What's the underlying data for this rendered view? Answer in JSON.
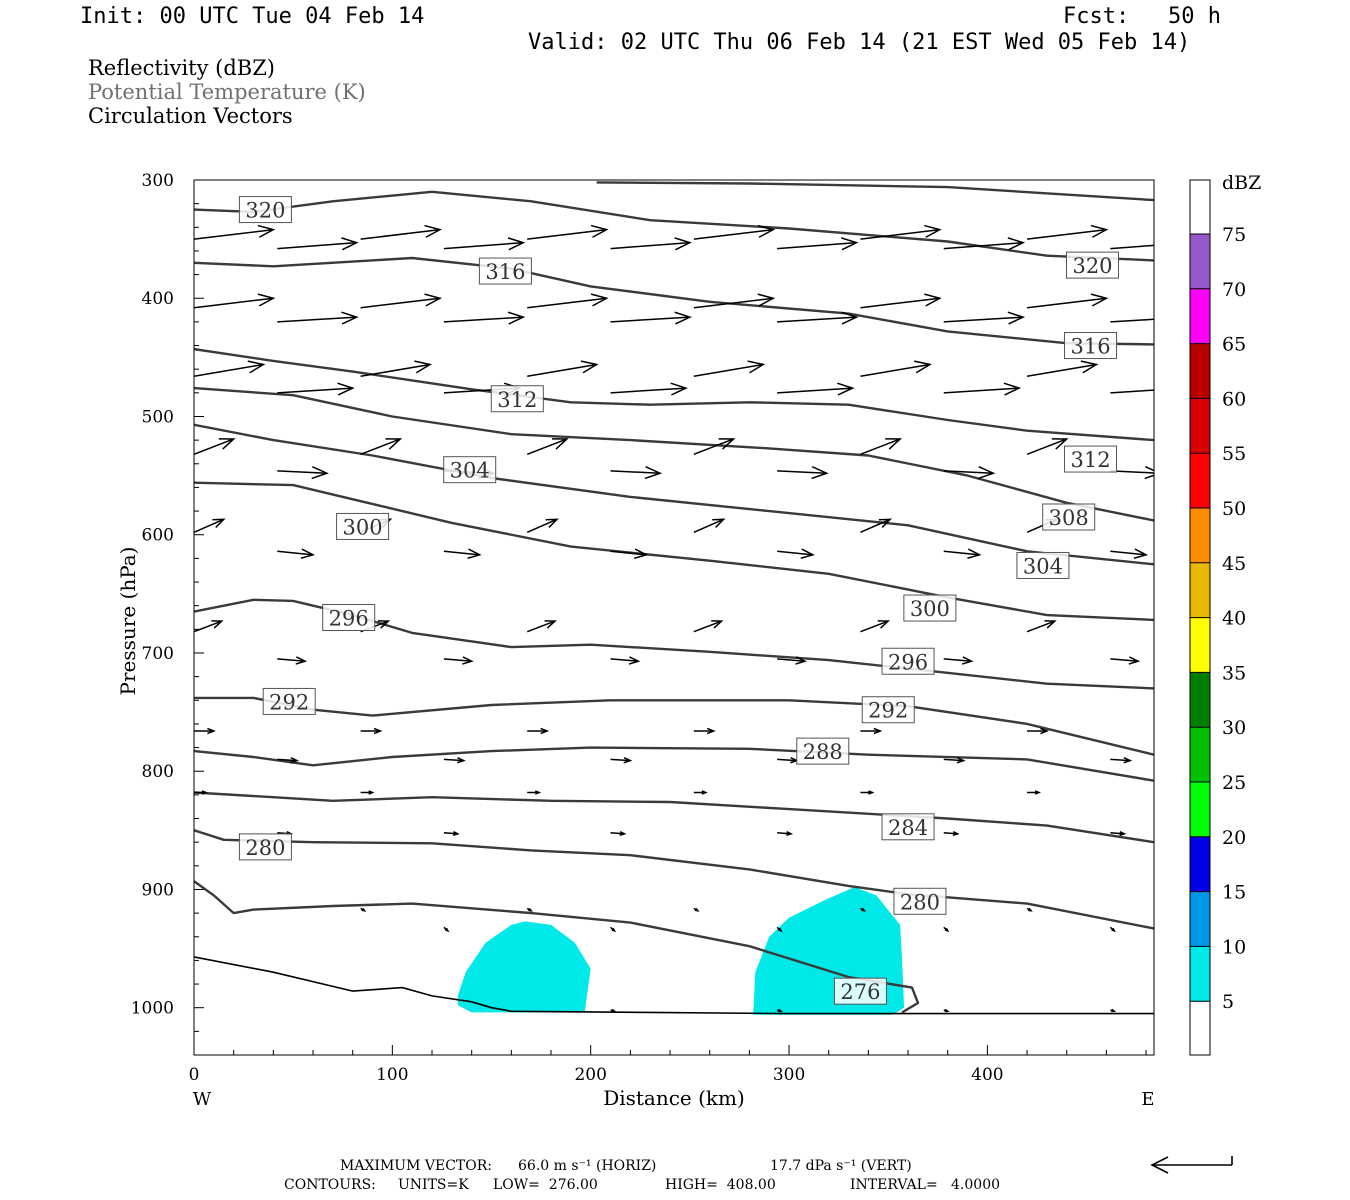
{
  "header": {
    "init": "Init: 00 UTC Tue 04 Feb 14",
    "fcst_label": "Fcst:",
    "fcst_value": "50 h",
    "valid": "Valid: 02 UTC Thu 06 Feb 14 (21 EST Wed 05 Feb 14)",
    "fields": [
      "Reflectivity (dBZ)",
      "Potential Temperature (K)",
      "Circulation Vectors"
    ]
  },
  "footer": {
    "max_label": "MAXIMUM VECTOR:",
    "max_horiz": "66.0 m s⁻¹ (HORIZ)",
    "max_vert": "17.7 dPa s⁻¹ (VERT)",
    "contours_label": "CONTOURS:",
    "units": "UNITS=K",
    "low": "LOW=  276.00",
    "high": "HIGH=  408.00",
    "interval": "INTERVAL=   4.0000"
  },
  "colors": {
    "contour": "#3a3a3a",
    "echo": "#00e8e8"
  },
  "chart_data": {
    "type": "cross-section",
    "xlabel": "Distance (km)",
    "ylabel": "Pressure (hPa)",
    "xlim": [
      0,
      484
    ],
    "ylim": [
      1040,
      300
    ],
    "x_ticks": [
      0,
      100,
      200,
      300,
      400
    ],
    "y_ticks": [
      300,
      400,
      500,
      600,
      700,
      800,
      900,
      1000
    ],
    "x_end_labels": {
      "left": "W",
      "right": "E"
    },
    "colorbar": {
      "label": "dBZ",
      "ticks": [
        5,
        10,
        15,
        20,
        25,
        30,
        35,
        40,
        45,
        50,
        55,
        60,
        65,
        70,
        75
      ],
      "colors": [
        "#00e8e8",
        "#0098e8",
        "#0000e8",
        "#00ff00",
        "#00c000",
        "#008000",
        "#ffff00",
        "#e8b800",
        "#ff8c00",
        "#ff0000",
        "#d80000",
        "#b80000",
        "#ff00ff",
        "#9858c8"
      ]
    },
    "theta_contours": [
      {
        "value": 320,
        "points": [
          [
            0,
            325
          ],
          [
            30,
            327
          ],
          [
            70,
            318
          ],
          [
            120,
            310
          ],
          [
            170,
            318
          ],
          [
            230,
            334
          ],
          [
            300,
            341
          ],
          [
            380,
            352
          ],
          [
            430,
            364
          ],
          [
            484,
            368
          ]
        ],
        "labels": [
          [
            36,
            325
          ],
          [
            453,
            372
          ]
        ]
      },
      {
        "value": 320,
        "points": [
          [
            203,
            302
          ],
          [
            280,
            303
          ],
          [
            380,
            306
          ],
          [
            484,
            317
          ]
        ],
        "labels": []
      },
      {
        "value": 316,
        "points": [
          [
            0,
            370
          ],
          [
            40,
            373
          ],
          [
            110,
            366
          ],
          [
            160,
            375
          ],
          [
            200,
            390
          ],
          [
            260,
            403
          ],
          [
            330,
            413
          ],
          [
            380,
            428
          ],
          [
            440,
            438
          ],
          [
            484,
            439
          ]
        ],
        "labels": [
          [
            157,
            377
          ],
          [
            452,
            440
          ]
        ]
      },
      {
        "value": 312,
        "points": [
          [
            0,
            443
          ],
          [
            40,
            453
          ],
          [
            80,
            462
          ],
          [
            140,
            477
          ],
          [
            190,
            488
          ],
          [
            230,
            490
          ],
          [
            280,
            488
          ],
          [
            330,
            490
          ],
          [
            380,
            503
          ],
          [
            420,
            512
          ],
          [
            484,
            520
          ]
        ],
        "labels": [
          [
            163,
            485
          ],
          [
            452,
            536
          ]
        ]
      },
      {
        "value": 308,
        "points": [
          [
            0,
            476
          ],
          [
            50,
            482
          ],
          [
            100,
            500
          ],
          [
            160,
            515
          ],
          [
            220,
            520
          ],
          [
            290,
            527
          ],
          [
            340,
            533
          ],
          [
            390,
            550
          ],
          [
            440,
            573
          ],
          [
            484,
            588
          ]
        ],
        "labels": [
          [
            441,
            585
          ]
        ]
      },
      {
        "value": 304,
        "points": [
          [
            0,
            507
          ],
          [
            40,
            520
          ],
          [
            90,
            533
          ],
          [
            150,
            552
          ],
          [
            220,
            568
          ],
          [
            290,
            580
          ],
          [
            360,
            592
          ],
          [
            420,
            614
          ],
          [
            484,
            625
          ]
        ],
        "labels": [
          [
            139,
            545
          ],
          [
            428,
            626
          ]
        ]
      },
      {
        "value": 300,
        "points": [
          [
            0,
            556
          ],
          [
            50,
            558
          ],
          [
            100,
            578
          ],
          [
            130,
            590
          ],
          [
            190,
            610
          ],
          [
            260,
            622
          ],
          [
            320,
            633
          ],
          [
            380,
            653
          ],
          [
            430,
            668
          ],
          [
            484,
            672
          ]
        ],
        "labels": [
          [
            85,
            593
          ],
          [
            371,
            662
          ]
        ]
      },
      {
        "value": 296,
        "points": [
          [
            0,
            665
          ],
          [
            30,
            655
          ],
          [
            50,
            656
          ],
          [
            80,
            668
          ],
          [
            110,
            683
          ],
          [
            160,
            695
          ],
          [
            200,
            693
          ],
          [
            260,
            699
          ],
          [
            320,
            706
          ],
          [
            370,
            715
          ],
          [
            430,
            726
          ],
          [
            484,
            730
          ]
        ],
        "labels": [
          [
            78,
            670
          ],
          [
            360,
            707
          ]
        ]
      },
      {
        "value": 292,
        "points": [
          [
            0,
            738
          ],
          [
            30,
            738
          ],
          [
            60,
            748
          ],
          [
            90,
            753
          ],
          [
            150,
            744
          ],
          [
            210,
            740
          ],
          [
            300,
            740
          ],
          [
            360,
            745
          ],
          [
            420,
            760
          ],
          [
            484,
            786
          ]
        ],
        "labels": [
          [
            48,
            741
          ],
          [
            350,
            748
          ]
        ]
      },
      {
        "value": 288,
        "points": [
          [
            0,
            783
          ],
          [
            30,
            788
          ],
          [
            60,
            795
          ],
          [
            100,
            788
          ],
          [
            150,
            783
          ],
          [
            200,
            780
          ],
          [
            280,
            781
          ],
          [
            340,
            786
          ],
          [
            420,
            790
          ],
          [
            484,
            808
          ]
        ],
        "labels": [
          [
            317,
            783
          ]
        ]
      },
      {
        "value": 284,
        "points": [
          [
            0,
            818
          ],
          [
            40,
            822
          ],
          [
            70,
            825
          ],
          [
            120,
            822
          ],
          [
            180,
            825
          ],
          [
            240,
            826
          ],
          [
            300,
            832
          ],
          [
            380,
            840
          ],
          [
            430,
            846
          ],
          [
            484,
            860
          ]
        ],
        "labels": [
          [
            360,
            847
          ]
        ]
      },
      {
        "value": 280,
        "points": [
          [
            0,
            850
          ],
          [
            15,
            858
          ],
          [
            60,
            860
          ],
          [
            120,
            861
          ],
          [
            170,
            867
          ],
          [
            220,
            871
          ],
          [
            280,
            883
          ],
          [
            330,
            897
          ],
          [
            360,
            904
          ],
          [
            420,
            912
          ],
          [
            484,
            933
          ]
        ],
        "labels": [
          [
            36,
            864
          ],
          [
            366,
            910
          ]
        ]
      },
      {
        "value": 276,
        "points": [
          [
            0,
            893
          ],
          [
            10,
            905
          ],
          [
            20,
            920
          ],
          [
            30,
            917
          ],
          [
            70,
            914
          ],
          [
            110,
            912
          ],
          [
            170,
            920
          ],
          [
            220,
            928
          ],
          [
            280,
            948
          ],
          [
            330,
            974
          ],
          [
            362,
            983
          ],
          [
            365,
            996
          ],
          [
            357,
            1004
          ]
        ],
        "labels": [
          [
            336,
            986
          ]
        ]
      }
    ],
    "terrain_points": [
      [
        0,
        957
      ],
      [
        40,
        970
      ],
      [
        80,
        986
      ],
      [
        105,
        983
      ],
      [
        120,
        990
      ],
      [
        140,
        995
      ],
      [
        150,
        1000
      ],
      [
        160,
        1003
      ],
      [
        300,
        1005
      ],
      [
        484,
        1005
      ]
    ],
    "reflectivity_areas": [
      {
        "dbz": 5,
        "points": [
          [
            133,
            990
          ],
          [
            137,
            970
          ],
          [
            147,
            945
          ],
          [
            160,
            930
          ],
          [
            167,
            927
          ],
          [
            180,
            930
          ],
          [
            192,
            945
          ],
          [
            200,
            967
          ],
          [
            197,
            1004
          ],
          [
            140,
            1004
          ],
          [
            133,
            998
          ]
        ]
      },
      {
        "dbz": 5,
        "points": [
          [
            282,
            1004
          ],
          [
            283,
            970
          ],
          [
            290,
            940
          ],
          [
            300,
            924
          ],
          [
            318,
            909
          ],
          [
            333,
            898
          ],
          [
            344,
            905
          ],
          [
            356,
            930
          ],
          [
            357,
            960
          ],
          [
            358,
            1000
          ],
          [
            352,
            1006
          ],
          [
            282,
            1006
          ]
        ]
      }
    ],
    "vectors": [
      {
        "p": 350,
        "xs": [
          0,
          84,
          168,
          252,
          336,
          420
        ],
        "dx": 40,
        "dp": -8
      },
      {
        "p": 358,
        "xs": [
          42,
          126,
          210,
          294,
          378,
          462
        ],
        "dx": 40,
        "dp": -5
      },
      {
        "p": 408,
        "xs": [
          0,
          84,
          168,
          252,
          336,
          420
        ],
        "dx": 40,
        "dp": -8
      },
      {
        "p": 420,
        "xs": [
          42,
          126,
          210,
          294,
          378,
          462
        ],
        "dx": 40,
        "dp": -4
      },
      {
        "p": 466,
        "xs": [
          0,
          84,
          168,
          252,
          336,
          420
        ],
        "dx": 35,
        "dp": -10
      },
      {
        "p": 480,
        "xs": [
          42,
          126,
          210,
          294,
          378,
          462
        ],
        "dx": 38,
        "dp": -4
      },
      {
        "p": 532,
        "xs": [
          0,
          84,
          168,
          252,
          336,
          420
        ],
        "dx": 20,
        "dp": -13
      },
      {
        "p": 546,
        "xs": [
          42,
          126,
          210,
          294,
          378,
          462
        ],
        "dx": 25,
        "dp": 2
      },
      {
        "p": 598,
        "xs": [
          0,
          84,
          168,
          252,
          336,
          420
        ],
        "dx": 15,
        "dp": -11
      },
      {
        "p": 614,
        "xs": [
          42,
          126,
          210,
          294,
          378,
          462
        ],
        "dx": 18,
        "dp": 3
      },
      {
        "p": 682,
        "xs": [
          0,
          84,
          168,
          252,
          336,
          420
        ],
        "dx": 14,
        "dp": -9
      },
      {
        "p": 705,
        "xs": [
          42,
          126,
          210,
          294,
          378,
          462
        ],
        "dx": 14,
        "dp": 2
      },
      {
        "p": 766,
        "xs": [
          0,
          84,
          168,
          252,
          336,
          420
        ],
        "dx": 10,
        "dp": 0
      },
      {
        "p": 790,
        "xs": [
          42,
          126,
          210,
          294,
          378,
          462
        ],
        "dx": 10,
        "dp": 1
      },
      {
        "p": 818,
        "xs": [
          0,
          84,
          168,
          252,
          336,
          420
        ],
        "dx": 6,
        "dp": 0
      },
      {
        "p": 852,
        "xs": [
          42,
          126,
          210,
          294,
          378,
          462
        ],
        "dx": 7,
        "dp": 1
      },
      {
        "p": 916,
        "xs": [
          84,
          168,
          252,
          336,
          420
        ],
        "dx": 2,
        "dp": 2
      },
      {
        "p": 932,
        "xs": [
          126,
          210,
          294,
          378,
          462
        ],
        "dx": 2,
        "dp": 3
      },
      {
        "p": 1002,
        "xs": [
          210,
          294,
          378,
          462
        ],
        "dx": 2,
        "dp": 1
      }
    ]
  }
}
